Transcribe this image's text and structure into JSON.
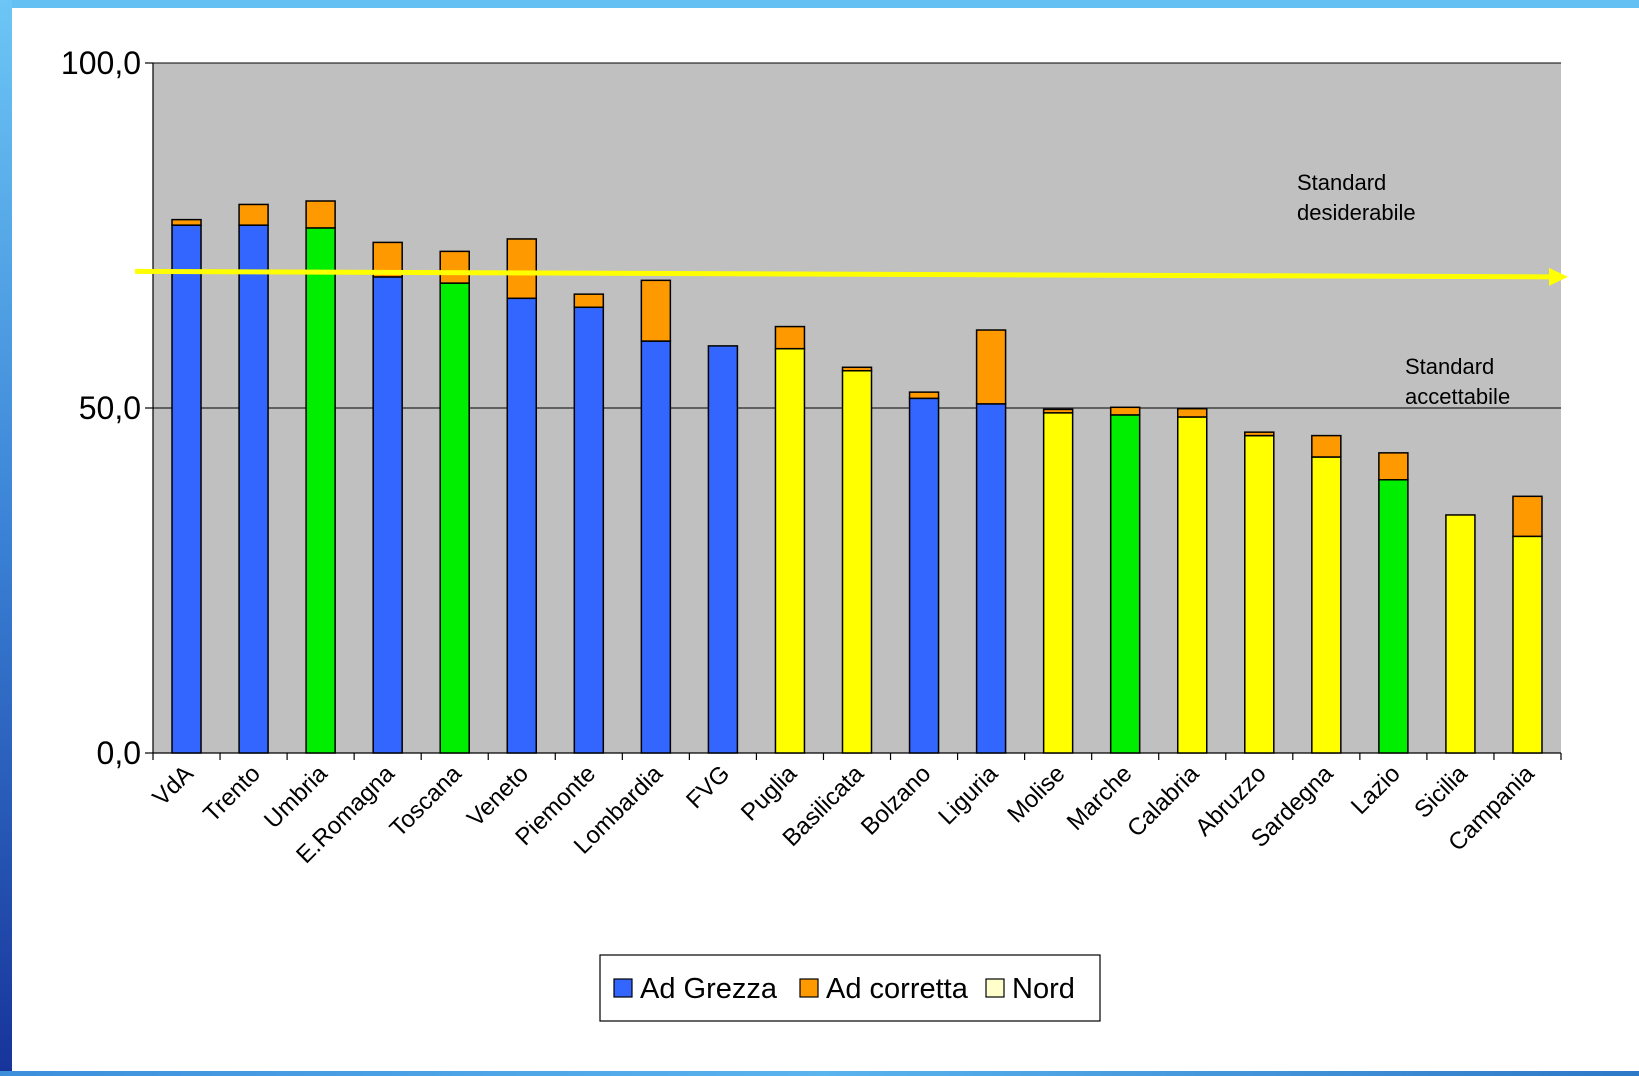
{
  "chart_data": {
    "type": "bar",
    "stacked": true,
    "categories": [
      "VdA",
      "Trento",
      "Umbria",
      "E.Romagna",
      "Toscana",
      "Veneto",
      "Piemonte",
      "Lombardia",
      "FVG",
      "Puglia",
      "Basilicata",
      "Bolzano",
      "Liguria",
      "Molise",
      "Marche",
      "Calabria",
      "Abruzzo",
      "Sardegna",
      "Lazio",
      "Sicilia",
      "Campania"
    ],
    "series": [
      {
        "name": "Ad Grezza",
        "values": [
          76.5,
          76.5,
          76.1,
          69.0,
          68.1,
          65.9,
          64.6,
          59.7,
          59.0,
          58.6,
          55.4,
          51.4,
          50.6,
          49.3,
          49.0,
          48.7,
          46.0,
          42.9,
          39.6,
          34.5,
          31.4
        ],
        "colors": [
          "#3366ff",
          "#3366ff",
          "#00ee00",
          "#3366ff",
          "#00ee00",
          "#3366ff",
          "#3366ff",
          "#3366ff",
          "#3366ff",
          "#ffff00",
          "#ffff00",
          "#3366ff",
          "#3366ff",
          "#ffff00",
          "#00ee00",
          "#ffff00",
          "#ffff00",
          "#ffff00",
          "#00ee00",
          "#ffff00",
          "#ffff00"
        ]
      },
      {
        "name": "Ad corretta",
        "values": [
          0.8,
          3.0,
          3.9,
          5.0,
          4.6,
          8.6,
          1.9,
          8.8,
          0,
          3.2,
          0.5,
          0.9,
          10.7,
          0.5,
          1.1,
          1.2,
          0.5,
          3.1,
          3.9,
          0,
          5.8
        ],
        "color": "#ff9900"
      }
    ],
    "legend": [
      {
        "label": "Ad Grezza",
        "color": "#3366ff"
      },
      {
        "label": "Ad corretta",
        "color": "#ff9900"
      },
      {
        "label": "Nord",
        "color": "#ffffcc"
      }
    ],
    "legend_position": "bottom",
    "ylim": [
      0,
      100
    ],
    "yticks": [
      {
        "value": 0,
        "label": "0,0"
      },
      {
        "value": 50,
        "label": "50,0"
      },
      {
        "value": 100,
        "label": "100,0"
      }
    ],
    "grid": true,
    "plot_background": "#c0c0c0",
    "reference_lines": [
      {
        "value": 50,
        "label_lines": [
          "Standard",
          "accettabile"
        ]
      },
      {
        "value": 69.8,
        "value_end": 69.0,
        "color": "#ffff00",
        "label_lines": [
          "Standard",
          "desiderabile"
        ]
      }
    ]
  }
}
